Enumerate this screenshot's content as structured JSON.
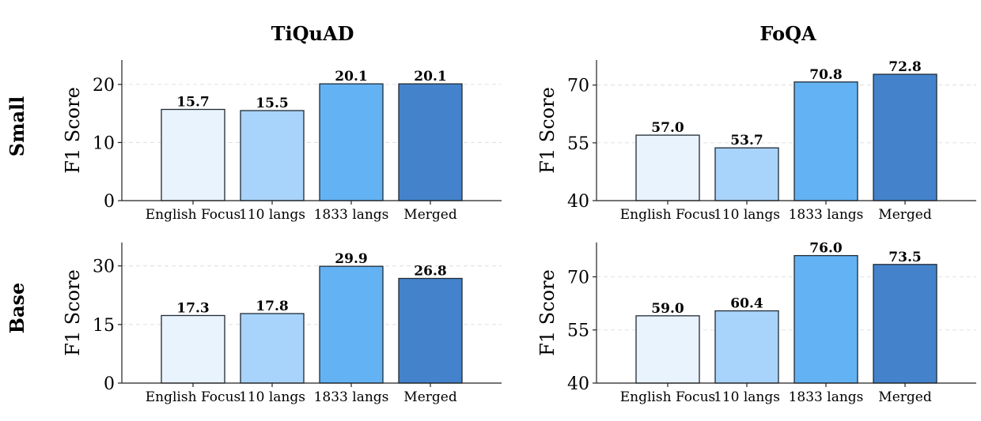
{
  "columns": [
    "TiQuAD",
    "FoQA"
  ],
  "rows": [
    "Small",
    "Base"
  ],
  "colors": [
    "#e8f3fd",
    "#a8d3fa",
    "#63b3f4",
    "#4483cc"
  ],
  "chart_data": [
    {
      "type": "bar",
      "dataset": "TiQuAD",
      "model": "Small",
      "categories": [
        "English Focus",
        "110 langs",
        "1833 langs",
        "Merged"
      ],
      "values": [
        15.7,
        15.5,
        20.1,
        20.1
      ],
      "value_labels": [
        "15.7",
        "15.5",
        "20.1",
        "20.1"
      ],
      "ylabel": "F1 Score",
      "ylim": [
        0,
        24.2
      ],
      "yticks": [
        0,
        10,
        20
      ],
      "ytick_labels": [
        "0",
        "10",
        "20"
      ],
      "grid": true
    },
    {
      "type": "bar",
      "dataset": "FoQA",
      "model": "Small",
      "categories": [
        "English Focus",
        "110 langs",
        "1833 langs",
        "Merged"
      ],
      "values": [
        57.0,
        53.7,
        70.8,
        72.8
      ],
      "value_labels": [
        "57.0",
        "53.7",
        "70.8",
        "72.8"
      ],
      "ylabel": "F1 Score",
      "ylim": [
        40,
        76.5
      ],
      "yticks": [
        40,
        55,
        70
      ],
      "ytick_labels": [
        "40",
        "55",
        "70"
      ],
      "grid": true
    },
    {
      "type": "bar",
      "dataset": "TiQuAD",
      "model": "Base",
      "categories": [
        "English Focus",
        "110 langs",
        "1833 langs",
        "Merged"
      ],
      "values": [
        17.3,
        17.8,
        29.9,
        26.8
      ],
      "value_labels": [
        "17.3",
        "17.8",
        "29.9",
        "26.8"
      ],
      "ylabel": "F1 Score",
      "ylim": [
        0,
        36
      ],
      "yticks": [
        0,
        15,
        30
      ],
      "ytick_labels": [
        "0",
        "15",
        "30"
      ],
      "grid": true
    },
    {
      "type": "bar",
      "dataset": "FoQA",
      "model": "Base",
      "categories": [
        "English Focus",
        "110 langs",
        "1833 langs",
        "Merged"
      ],
      "values": [
        59.0,
        60.4,
        76.0,
        73.5
      ],
      "value_labels": [
        "59.0",
        "60.4",
        "76.0",
        "73.5"
      ],
      "ylabel": "F1 Score",
      "ylim": [
        40,
        79.7
      ],
      "yticks": [
        40,
        55,
        70
      ],
      "ytick_labels": [
        "40",
        "55",
        "70"
      ],
      "grid": true
    }
  ]
}
